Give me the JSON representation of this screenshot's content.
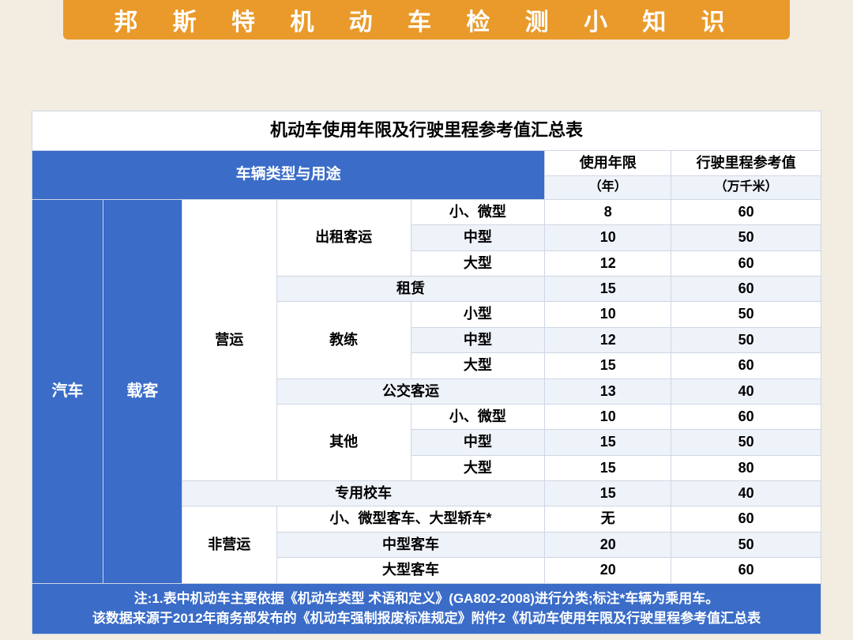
{
  "banner": "邦 斯 特 机 动 车 检 测 小 知 识",
  "table": {
    "title": "机动车使用年限及行驶里程参考值汇总表",
    "hdr_type": "车辆类型与用途",
    "hdr_years": "使用年限",
    "hdr_mileage": "行驶里程参考值",
    "unit_years": "（年）",
    "unit_mileage": "（万千米）",
    "side_car": "汽车",
    "side_passenger": "载客",
    "grp_operating": "营运",
    "grp_school": "专用校车",
    "grp_nonop": "非营运",
    "cat_taxi": "出租客运",
    "cat_rental": "租赁",
    "cat_coach": "教练",
    "cat_bus": "公交客运",
    "cat_other": "其他",
    "sz_small_micro": "小、微型",
    "sz_medium": "中型",
    "sz_large": "大型",
    "sz_small": "小型",
    "nonop_small": "小、微型客车、大型轿车*",
    "nonop_medium": "中型客车",
    "nonop_large": "大型客车",
    "v": {
      "taxi_sm_y": "8",
      "taxi_sm_m": "60",
      "taxi_md_y": "10",
      "taxi_md_m": "50",
      "taxi_lg_y": "12",
      "taxi_lg_m": "60",
      "rental_y": "15",
      "rental_m": "60",
      "coach_sm_y": "10",
      "coach_sm_m": "50",
      "coach_md_y": "12",
      "coach_md_m": "50",
      "coach_lg_y": "15",
      "coach_lg_m": "60",
      "bus_y": "13",
      "bus_m": "40",
      "other_sm_y": "10",
      "other_sm_m": "60",
      "other_md_y": "15",
      "other_md_m": "50",
      "other_lg_y": "15",
      "other_lg_m": "80",
      "school_y": "15",
      "school_m": "40",
      "nonop_sm_y": "无",
      "nonop_sm_m": "60",
      "nonop_md_y": "20",
      "nonop_md_m": "50",
      "nonop_lg_y": "20",
      "nonop_lg_m": "60"
    },
    "note1": "注:1.表中机动车主要依据《机动车类型 术语和定义》(GA802-2008)进行分类;标注*车辆为乘用车。",
    "note2": "该数据来源于2012年商务部发布的《机动车强制报废标准规定》附件2《机动车使用年限及行驶里程参考值汇总表"
  },
  "colors": {
    "banner_bg": "#e99a2a",
    "page_bg": "#f2ece1",
    "header_blue": "#3a6cc8",
    "alt_row": "#eef2f9",
    "border": "#cfd6e4"
  }
}
